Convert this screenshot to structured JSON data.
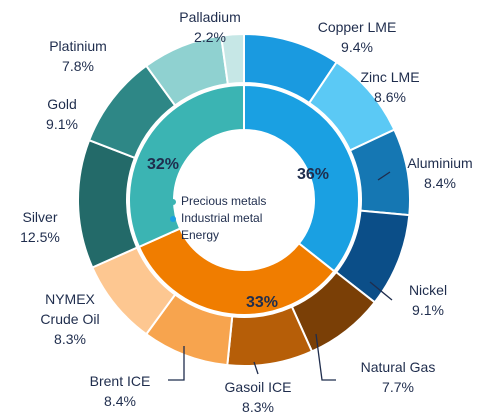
{
  "chart_data": {
    "type": "donut",
    "outer": {
      "categories": [
        "Copper LME",
        "Zinc LME",
        "Aluminium",
        "Nickel",
        "Natural Gas",
        "Gasoil ICE",
        "Brent ICE",
        "NYMEX Crude Oil",
        "Silver",
        "Gold",
        "Platinium",
        "Palladium"
      ],
      "values": [
        9.4,
        8.6,
        8.4,
        9.1,
        7.7,
        8.3,
        8.4,
        8.3,
        12.5,
        9.1,
        7.8,
        2.2
      ],
      "value_labels": [
        "9.4%",
        "8.6%",
        "8.4%",
        "9.1%",
        "7.7%",
        "8.3%",
        "8.4%",
        "8.3%",
        "12.5%",
        "9.1%",
        "7.8%",
        "2.2%"
      ],
      "colors": [
        "#1a9ae0",
        "#5bc9f5",
        "#1577b3",
        "#0b4e88",
        "#7a3f06",
        "#b65e08",
        "#f7a44e",
        "#fdc791",
        "#236a69",
        "#2e8786",
        "#8fd1d0",
        "#c6e7e6"
      ]
    },
    "inner": {
      "categories": [
        "Industrial metal",
        "Energy",
        "Precious metals"
      ],
      "values": [
        36,
        33,
        32
      ],
      "value_labels": [
        "36%",
        "33%",
        "32%"
      ],
      "colors": [
        "#1aa0e2",
        "#f07d00",
        "#3bb4b3"
      ]
    }
  }
}
